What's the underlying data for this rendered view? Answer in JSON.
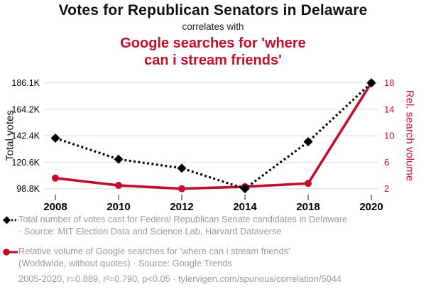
{
  "header": {
    "title": "Votes for Republican Senators in Delaware",
    "connector": "correlates with",
    "subtitle_lines": [
      "Google searches for 'where",
      "can i stream friends'"
    ]
  },
  "chart_data": {
    "type": "line",
    "x": [
      2008,
      2010,
      2012,
      2014,
      2018,
      2020
    ],
    "x_tick_labels": [
      "2008",
      "2010",
      "2012",
      "2014",
      "2018",
      "2020"
    ],
    "series": [
      {
        "name": "Total votes",
        "axis": "left",
        "color": "#000000",
        "line_style": "dotted",
        "marker": "diamond",
        "values": [
          140500,
          123100,
          115700,
          98800,
          137500,
          186100
        ]
      },
      {
        "name": "Rel. search volume",
        "axis": "right",
        "color": "#c10e2e",
        "line_style": "solid",
        "marker": "circle",
        "values": [
          3.6,
          2.5,
          2.0,
          2.3,
          2.8,
          18
        ]
      }
    ],
    "left_axis": {
      "label": "Total votes",
      "min": 98800,
      "max": 186100,
      "tick_labels": [
        "98.8K",
        "120.6K",
        "142.4K",
        "164.2K",
        "186.1K"
      ]
    },
    "right_axis": {
      "label": "Rel. search volume",
      "min": 2,
      "max": 18,
      "tick_labels": [
        "2",
        "6",
        "10",
        "14",
        "18"
      ]
    },
    "grid": true,
    "legend_position": "below"
  },
  "legend": {
    "series1": {
      "lines": [
        "Total number of votes cast for Federal Republican Senate candidates in Delaware",
        "· Source: MIT Election Data and Science Lab, Harvard Dataverse"
      ]
    },
    "series2": {
      "lines": [
        "Relative volume of Google searches for 'where can i stream friends'",
        "(Worldwide, without quotes) · Source: Google Trends"
      ]
    },
    "footer": "2005-2020, r=0.889, r²=0.790, p<0.05 · tylervigen.com/spurious/correlation/5044"
  },
  "colors": {
    "accent_red": "#c10e2e",
    "series_black": "#000000",
    "legend_gray": "#999999",
    "gridline": "#e6e6e6",
    "tick": "#444444"
  }
}
